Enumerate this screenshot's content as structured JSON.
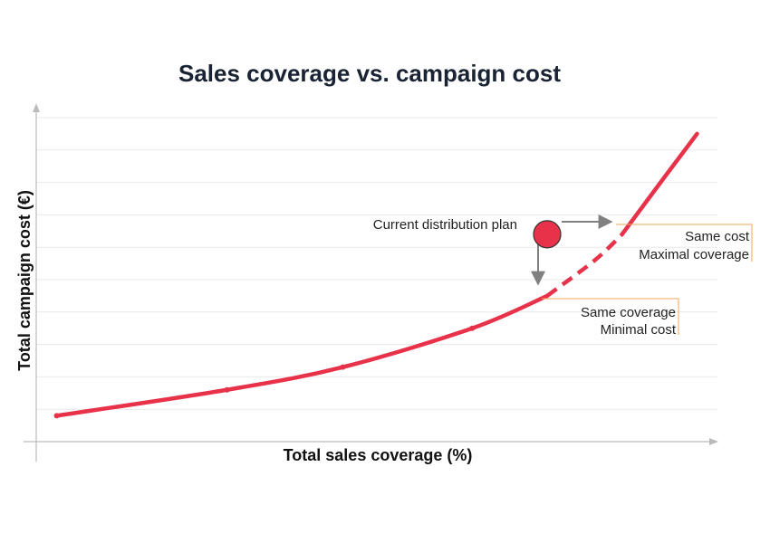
{
  "chart_data": {
    "type": "line",
    "title": "Sales coverage vs. campaign cost",
    "xlabel": "Total sales coverage (%)",
    "ylabel": "Total campaign cost (€)",
    "xlim": [
      0,
      100
    ],
    "ylim": [
      0,
      100
    ],
    "grid": true,
    "tick_labels_shown": false,
    "colors": {
      "curve": "#e8324a",
      "arrow": "#808080",
      "bracket": "#f2a65a",
      "grid": "#e9e9e9",
      "axis": "#bbbbbb"
    },
    "series": [
      {
        "points": [
          [
            3,
            8
          ],
          [
            28,
            16
          ],
          [
            45,
            23
          ],
          [
            64,
            35
          ],
          [
            75,
            45
          ],
          [
            82,
            56
          ],
          [
            86,
            64
          ],
          [
            92,
            81
          ],
          [
            97,
            95
          ]
        ],
        "markers": [
          [
            3,
            8
          ],
          [
            28,
            16
          ],
          [
            45,
            23
          ],
          [
            64,
            35
          ]
        ],
        "solid_until_x": 75,
        "dashed_until_x": 86
      }
    ],
    "current_plan": {
      "x": 75,
      "y": 64,
      "label": "Current distribution plan"
    },
    "annotations": [
      {
        "lines": [
          "Same cost",
          "Maximal coverage"
        ],
        "at": [
          86,
          64
        ]
      },
      {
        "lines": [
          "Same coverage",
          "Minimal cost"
        ],
        "at": [
          75,
          45
        ]
      }
    ]
  }
}
